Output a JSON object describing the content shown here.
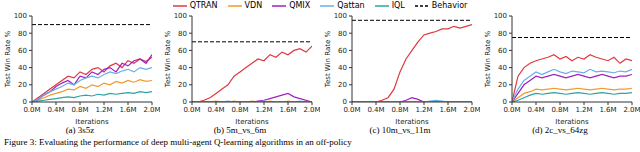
{
  "caption": "Figure 3: Evaluating the performance of deep multi-agent Q-learning algorithms in an off-policy",
  "chart_data": [
    {
      "type": "line",
      "title": "(a) 3s5z",
      "legend": "top",
      "x_label": "Iterations",
      "y_label": "Test Win Rate %",
      "x": [
        0,
        100000,
        200000,
        300000,
        400000,
        500000,
        600000,
        700000,
        800000,
        900000,
        1000000,
        1100000,
        1200000,
        1300000,
        1400000,
        1500000,
        1600000,
        1700000,
        1800000,
        1900000,
        2000000
      ],
      "xlim": [
        0,
        2000000
      ],
      "xticks": [
        {
          "value": 0,
          "label": "0.0M"
        },
        {
          "value": 400000,
          "label": "0.4M"
        },
        {
          "value": 800000,
          "label": "0.8M"
        },
        {
          "value": 1200000,
          "label": "1.2M"
        },
        {
          "value": 1600000,
          "label": "1.6M"
        },
        {
          "value": 2000000,
          "label": "2.0M"
        }
      ],
      "ylim": [
        0,
        100
      ],
      "yticks": [
        0,
        20,
        40,
        60,
        80,
        100
      ],
      "series": [
        {
          "name": "QTRAN",
          "color": "#e0383e",
          "values": [
            0,
            5,
            10,
            15,
            20,
            25,
            30,
            28,
            35,
            32,
            38,
            40,
            35,
            42,
            45,
            40,
            48,
            45,
            50,
            47,
            52
          ]
        },
        {
          "name": "VDN",
          "color": "#f29a2e",
          "values": [
            0,
            2,
            5,
            8,
            10,
            12,
            15,
            14,
            18,
            16,
            20,
            18,
            22,
            20,
            24,
            22,
            25,
            23,
            26,
            24,
            25
          ]
        },
        {
          "name": "QMIX",
          "color": "#a21fc4",
          "values": [
            0,
            3,
            8,
            12,
            18,
            22,
            25,
            20,
            30,
            28,
            35,
            32,
            38,
            40,
            35,
            45,
            42,
            48,
            50,
            45,
            55
          ]
        },
        {
          "name": "Qattan",
          "color": "#6aaee6",
          "values": [
            0,
            3,
            8,
            12,
            15,
            18,
            22,
            20,
            25,
            28,
            30,
            28,
            32,
            35,
            33,
            36,
            38,
            35,
            40,
            38,
            40
          ]
        },
        {
          "name": "IQL",
          "color": "#2fa3a3",
          "values": [
            0,
            1,
            2,
            3,
            4,
            5,
            6,
            5,
            7,
            8,
            7,
            9,
            8,
            10,
            9,
            10,
            11,
            10,
            12,
            11,
            12
          ]
        },
        {
          "name": "Behavior",
          "color": "#000000",
          "line_style": "dashed",
          "values": [
            90,
            90,
            90,
            90,
            90,
            90,
            90,
            90,
            90,
            90,
            90,
            90,
            90,
            90,
            90,
            90,
            90,
            90,
            90,
            90,
            90
          ]
        }
      ]
    },
    {
      "type": "line",
      "title": "(b) 5m_vs_6m",
      "x_label": "Iterations",
      "y_label": "Test Win Rate %",
      "x": [
        0,
        100000,
        200000,
        300000,
        400000,
        500000,
        600000,
        700000,
        800000,
        900000,
        1000000,
        1100000,
        1200000,
        1300000,
        1400000,
        1500000,
        1600000,
        1700000,
        1800000,
        1900000,
        2000000
      ],
      "xlim": [
        0,
        2000000
      ],
      "xticks": [
        {
          "value": 0,
          "label": "0.0M"
        },
        {
          "value": 400000,
          "label": "0.4M"
        },
        {
          "value": 800000,
          "label": "0.8M"
        },
        {
          "value": 1200000,
          "label": "1.2M"
        },
        {
          "value": 1600000,
          "label": "1.6M"
        },
        {
          "value": 2000000,
          "label": "2.0M"
        }
      ],
      "ylim": [
        0,
        100
      ],
      "yticks": [
        0,
        20,
        40,
        60,
        80,
        100
      ],
      "series": [
        {
          "name": "QTRAN",
          "color": "#e0383e",
          "values": [
            0,
            0,
            2,
            5,
            10,
            15,
            20,
            30,
            35,
            40,
            45,
            50,
            48,
            55,
            52,
            58,
            55,
            60,
            62,
            58,
            65
          ]
        },
        {
          "name": "VDN",
          "color": "#f29a2e",
          "values": [
            0,
            0,
            0,
            0,
            1,
            0,
            0,
            1,
            0,
            0,
            1,
            0,
            0,
            1,
            0,
            0,
            1,
            0,
            0,
            1,
            0
          ]
        },
        {
          "name": "QMIX",
          "color": "#a21fc4",
          "values": [
            0,
            0,
            0,
            0,
            0,
            0,
            0,
            0,
            0,
            0,
            0,
            1,
            2,
            4,
            6,
            8,
            10,
            6,
            4,
            2,
            0
          ]
        },
        {
          "name": "Qattan",
          "color": "#6aaee6",
          "values": [
            0,
            0,
            0,
            0,
            0,
            0,
            1,
            0,
            0,
            0,
            0,
            0,
            1,
            0,
            0,
            0,
            0,
            0,
            1,
            0,
            0
          ]
        },
        {
          "name": "IQL",
          "color": "#2fa3a3",
          "values": [
            0,
            0,
            0,
            0,
            0,
            0,
            0,
            0,
            0,
            0,
            0,
            0,
            0,
            0,
            0,
            0,
            0,
            0,
            0,
            0,
            0
          ]
        },
        {
          "name": "Behavior",
          "color": "#000000",
          "line_style": "dashed",
          "values": [
            70,
            70,
            70,
            70,
            70,
            70,
            70,
            70,
            70,
            70,
            70,
            70,
            70,
            70,
            70,
            70,
            70,
            70,
            70,
            70,
            70
          ]
        }
      ]
    },
    {
      "type": "line",
      "title": "(c) 10m_vs_11m",
      "x_label": "Iterations",
      "y_label": "Test Win Rate %",
      "x": [
        0,
        100000,
        200000,
        300000,
        400000,
        500000,
        600000,
        700000,
        800000,
        900000,
        1000000,
        1100000,
        1200000,
        1300000,
        1400000,
        1500000,
        1600000,
        1700000,
        1800000,
        1900000,
        2000000
      ],
      "xlim": [
        0,
        2000000
      ],
      "xticks": [
        {
          "value": 0,
          "label": "0.0M"
        },
        {
          "value": 400000,
          "label": "0.4M"
        },
        {
          "value": 800000,
          "label": "0.8M"
        },
        {
          "value": 1200000,
          "label": "1.2M"
        },
        {
          "value": 1600000,
          "label": "1.6M"
        },
        {
          "value": 2000000,
          "label": "2.0M"
        }
      ],
      "ylim": [
        0,
        100
      ],
      "yticks": [
        0,
        20,
        40,
        60,
        80,
        100
      ],
      "series": [
        {
          "name": "QTRAN",
          "color": "#e0383e",
          "values": [
            0,
            0,
            0,
            0,
            0,
            2,
            5,
            15,
            35,
            50,
            60,
            70,
            78,
            80,
            82,
            85,
            85,
            88,
            86,
            88,
            90
          ]
        },
        {
          "name": "VDN",
          "color": "#f29a2e",
          "values": [
            0,
            0,
            0,
            0,
            0,
            0,
            0,
            0,
            0,
            0,
            0,
            0,
            0,
            0,
            0,
            0,
            0,
            0,
            0,
            0,
            0
          ]
        },
        {
          "name": "QMIX",
          "color": "#a21fc4",
          "values": [
            0,
            0,
            0,
            0,
            0,
            0,
            0,
            0,
            0,
            2,
            5,
            3,
            0,
            0,
            0,
            0,
            0,
            0,
            0,
            0,
            0
          ]
        },
        {
          "name": "Qattan",
          "color": "#6aaee6",
          "values": [
            0,
            0,
            0,
            0,
            0,
            0,
            0,
            0,
            0,
            0,
            0,
            0,
            0,
            1,
            2,
            1,
            0,
            0,
            0,
            0,
            0
          ]
        },
        {
          "name": "IQL",
          "color": "#2fa3a3",
          "values": [
            0,
            0,
            0,
            0,
            0,
            0,
            0,
            0,
            0,
            0,
            0,
            0,
            0,
            0,
            0,
            0,
            0,
            0,
            0,
            0,
            0
          ]
        },
        {
          "name": "Behavior",
          "color": "#000000",
          "line_style": "dashed",
          "values": [
            95,
            95,
            95,
            95,
            95,
            95,
            95,
            95,
            95,
            95,
            95,
            95,
            95,
            95,
            95,
            95,
            95,
            95,
            95,
            95,
            95
          ]
        }
      ]
    },
    {
      "type": "line",
      "title": "(d) 2c_vs_64zg",
      "x_label": "Iterations",
      "y_label": "Test Win Rate %",
      "x": [
        0,
        100000,
        200000,
        300000,
        400000,
        500000,
        600000,
        700000,
        800000,
        900000,
        1000000,
        1100000,
        1200000,
        1300000,
        1400000,
        1500000,
        1600000,
        1700000,
        1800000,
        1900000,
        2000000
      ],
      "xlim": [
        0,
        2000000
      ],
      "xticks": [
        {
          "value": 0,
          "label": "0.0M"
        },
        {
          "value": 400000,
          "label": "0.4M"
        },
        {
          "value": 800000,
          "label": "0.8M"
        },
        {
          "value": 1200000,
          "label": "1.2M"
        },
        {
          "value": 1600000,
          "label": "1.6M"
        },
        {
          "value": 2000000,
          "label": "2.0M"
        }
      ],
      "ylim": [
        0,
        100
      ],
      "yticks": [
        0,
        20,
        40,
        60,
        80,
        100
      ],
      "series": [
        {
          "name": "QTRAN",
          "color": "#e0383e",
          "values": [
            0,
            30,
            40,
            45,
            48,
            50,
            52,
            55,
            50,
            53,
            48,
            52,
            50,
            55,
            52,
            50,
            48,
            52,
            45,
            50,
            48
          ]
        },
        {
          "name": "VDN",
          "color": "#f29a2e",
          "values": [
            0,
            5,
            10,
            12,
            15,
            14,
            15,
            16,
            15,
            14,
            15,
            16,
            15,
            14,
            15,
            16,
            15,
            14,
            15,
            15,
            16
          ]
        },
        {
          "name": "QMIX",
          "color": "#a21fc4",
          "values": [
            0,
            10,
            20,
            25,
            30,
            28,
            30,
            32,
            30,
            28,
            30,
            32,
            30,
            28,
            30,
            32,
            30,
            28,
            30,
            30,
            32
          ]
        },
        {
          "name": "Qattan",
          "color": "#6aaee6",
          "values": [
            0,
            15,
            25,
            30,
            35,
            32,
            35,
            38,
            35,
            33,
            36,
            35,
            34,
            38,
            35,
            36,
            35,
            34,
            36,
            35,
            38
          ]
        },
        {
          "name": "IQL",
          "color": "#2fa3a3",
          "values": [
            0,
            2,
            5,
            8,
            10,
            9,
            10,
            11,
            10,
            9,
            10,
            11,
            10,
            9,
            10,
            11,
            10,
            9,
            10,
            10,
            11
          ]
        },
        {
          "name": "Behavior",
          "color": "#000000",
          "line_style": "dashed",
          "values": [
            75,
            75,
            75,
            75,
            75,
            75,
            75,
            75,
            75,
            75,
            75,
            75,
            75,
            75,
            75,
            75,
            75,
            75,
            75,
            75,
            75
          ]
        }
      ]
    }
  ]
}
